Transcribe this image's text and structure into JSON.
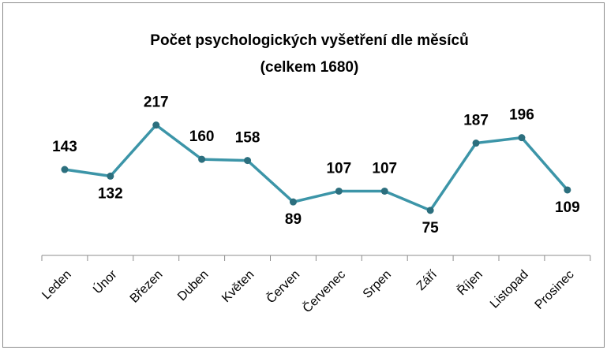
{
  "chart_data": {
    "type": "line",
    "title": "Počet psychologických vyšetření dle měsíců",
    "subtitle": "(celkem 1680)",
    "categories": [
      "Leden",
      "Únor",
      "Březen",
      "Duben",
      "Květen",
      "Červen",
      "Červenec",
      "Srpen",
      "Září",
      "Říjen",
      "Listopad",
      "Prosinec"
    ],
    "values": [
      143,
      132,
      217,
      160,
      158,
      89,
      107,
      107,
      75,
      187,
      196,
      109
    ],
    "color": "#3c95a8",
    "marker_color": "#2c6f7e"
  }
}
